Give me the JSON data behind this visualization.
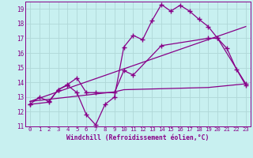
{
  "xlabel": "Windchill (Refroidissement éolien,°C)",
  "background_color": "#c8f0f0",
  "grid_color": "#b0d8d8",
  "line_color": "#880088",
  "spine_color": "#880088",
  "xlim": [
    -0.5,
    23.5
  ],
  "ylim": [
    11,
    19.5
  ],
  "xticks": [
    0,
    1,
    2,
    3,
    4,
    5,
    6,
    7,
    8,
    9,
    10,
    11,
    12,
    13,
    14,
    15,
    16,
    17,
    18,
    19,
    20,
    21,
    22,
    23
  ],
  "yticks": [
    11,
    12,
    13,
    14,
    15,
    16,
    17,
    18,
    19
  ],
  "line1_x": [
    0,
    1,
    2,
    3,
    4,
    5,
    6,
    7,
    8,
    9,
    10,
    11,
    12,
    13,
    14,
    15,
    16,
    17,
    18,
    19,
    20,
    21,
    22,
    23
  ],
  "line1_y": [
    12.5,
    13.0,
    12.7,
    13.5,
    13.8,
    13.3,
    11.8,
    11.1,
    12.5,
    13.0,
    16.4,
    17.2,
    16.9,
    18.2,
    19.3,
    18.85,
    19.25,
    18.85,
    18.3,
    17.8,
    17.0,
    16.3,
    14.9,
    13.8
  ],
  "line2_x": [
    0,
    2,
    3,
    4,
    5,
    6,
    7,
    9,
    10,
    11,
    14,
    19,
    20,
    23
  ],
  "line2_y": [
    12.5,
    12.65,
    13.5,
    13.85,
    14.3,
    13.3,
    13.3,
    13.3,
    14.8,
    14.5,
    16.5,
    17.0,
    17.0,
    13.9
  ],
  "line3_x": [
    0,
    23
  ],
  "line3_y": [
    12.7,
    17.8
  ],
  "line4_x": [
    0,
    9,
    10,
    19,
    23
  ],
  "line4_y": [
    12.7,
    13.35,
    13.5,
    13.65,
    13.9
  ],
  "marker": "+",
  "markersize": 4,
  "linewidth": 0.9,
  "tick_fontsize": 5.2,
  "xlabel_fontsize": 5.8
}
